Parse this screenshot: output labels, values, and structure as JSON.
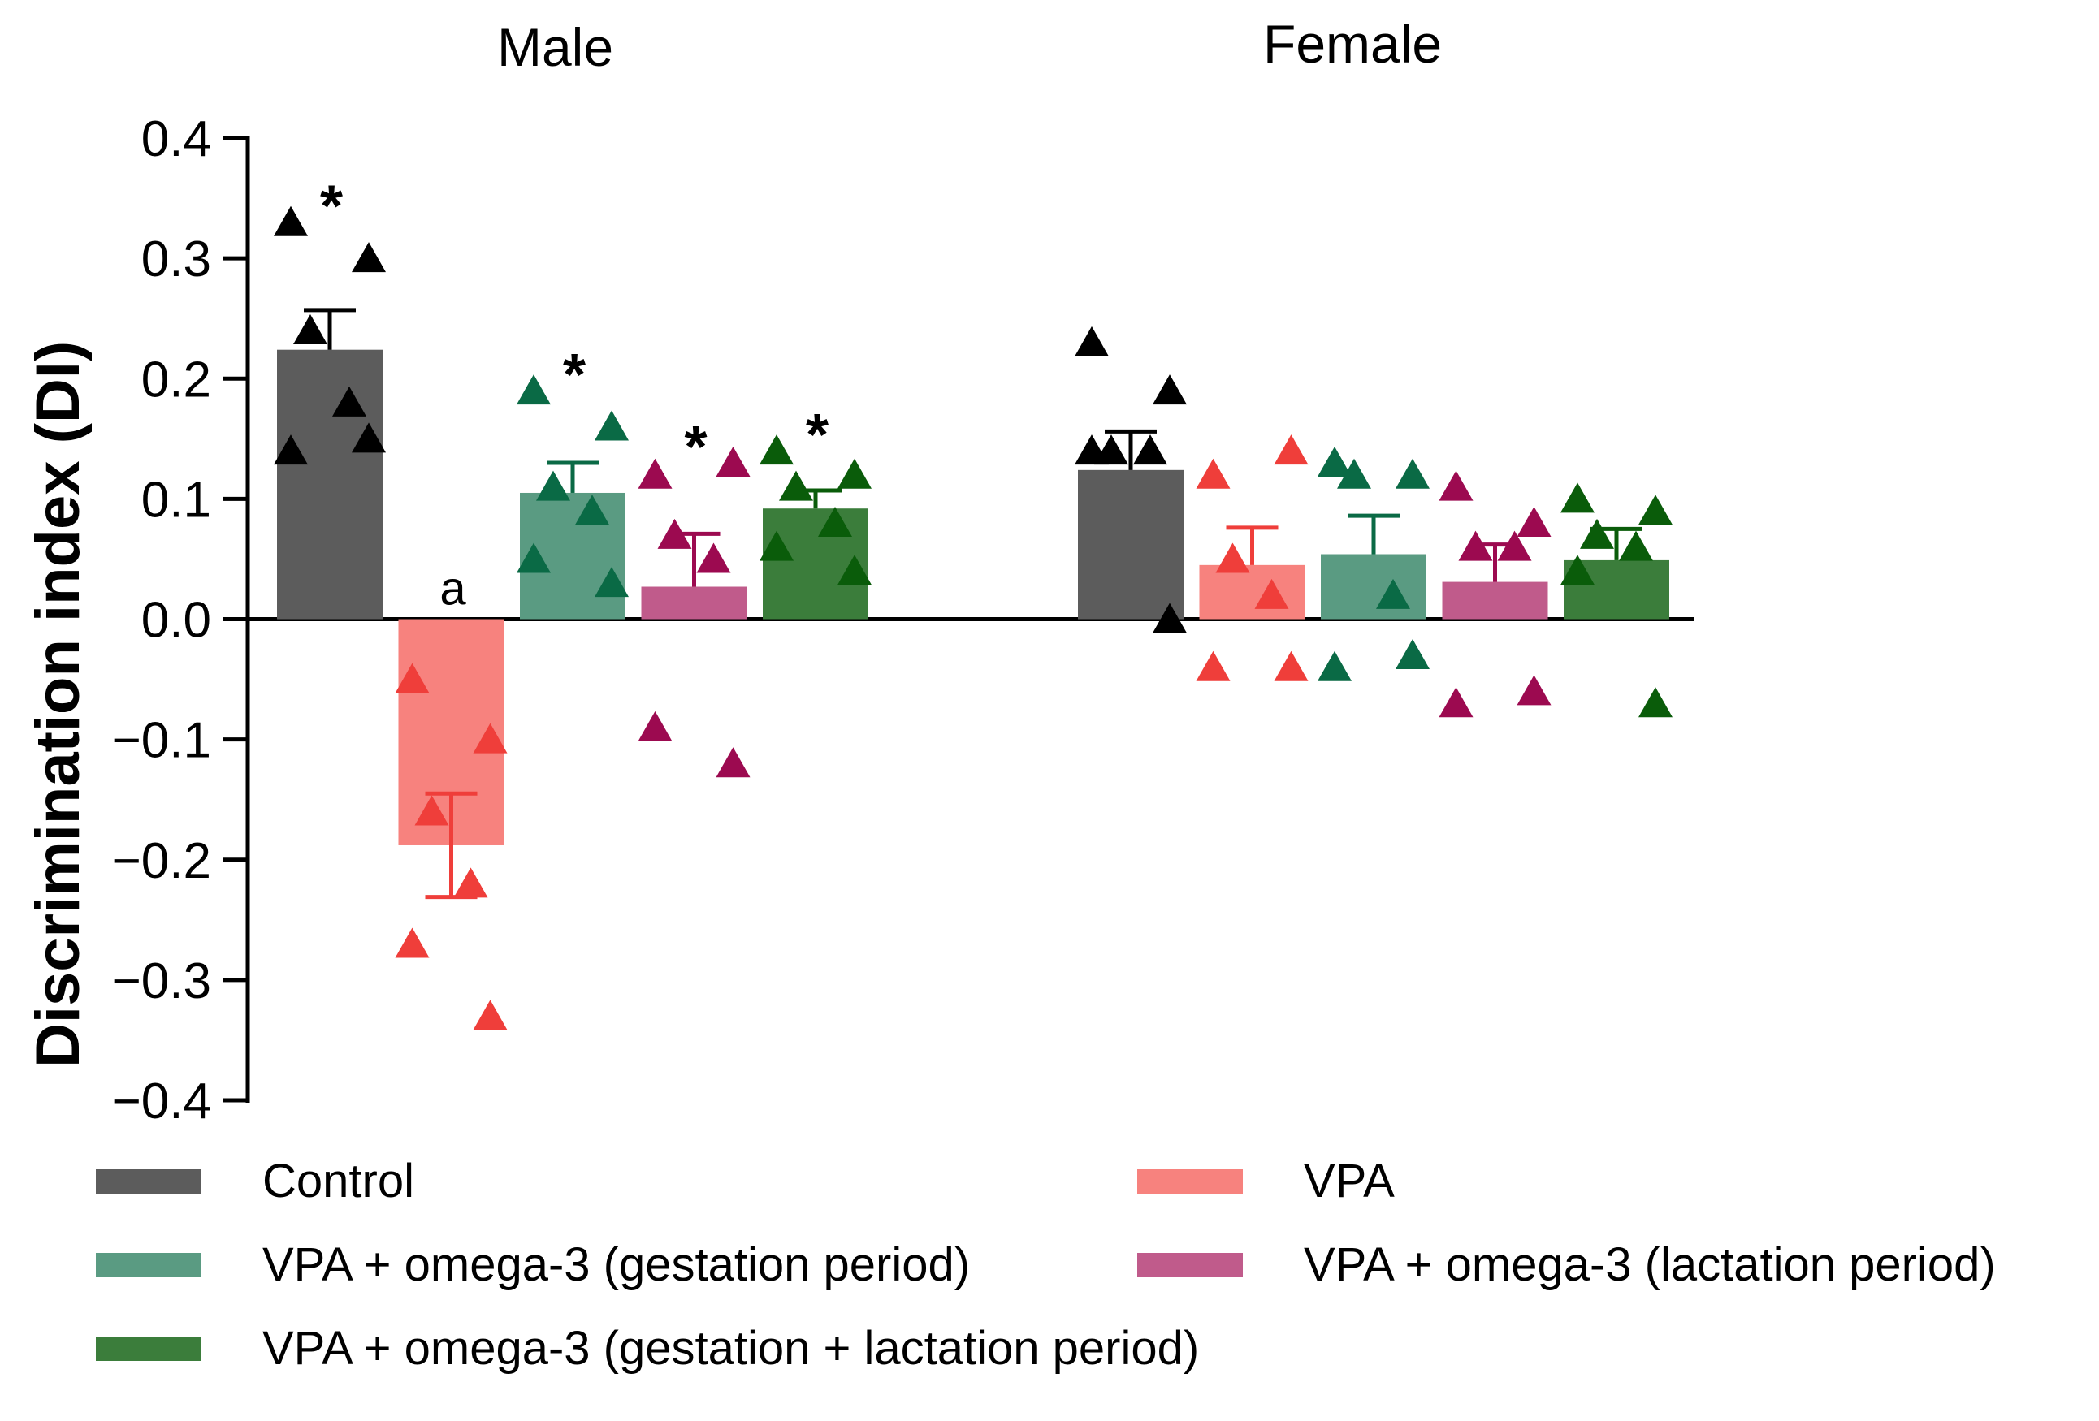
{
  "chart_data": {
    "type": "bar",
    "title": "",
    "ylabel": "Discrimination index (DI)",
    "xlabel": "",
    "ylim": [
      -0.4,
      0.4
    ],
    "yticks": [
      0.4,
      0.3,
      0.2,
      0.1,
      0.0,
      -0.1,
      -0.2,
      -0.3,
      -0.4
    ],
    "ytick_labels": [
      "0.4",
      "0.3",
      "0.2",
      "0.1",
      "0.0",
      "−0.1",
      "−0.2",
      "−0.3",
      "−0.4"
    ],
    "groups": [
      "Male",
      "Female"
    ],
    "series": [
      {
        "name": "Control",
        "color": "#5c5c5c",
        "marker_color": "#000000",
        "values": [
          0.224,
          0.124
        ],
        "sem": [
          0.033,
          0.032
        ],
        "points": [
          [
            0.33,
            0.3,
            0.24,
            0.18,
            0.14,
            0.15
          ],
          [
            0.23,
            0.19,
            0.14,
            0.14,
            0.14,
            0.0
          ]
        ],
        "annotations": [
          "*",
          ""
        ]
      },
      {
        "name": "VPA",
        "color": "#f7827e",
        "marker_color": "#ef3e3a",
        "values": [
          -0.188,
          0.045
        ],
        "sem": [
          0.043,
          0.031
        ],
        "points": [
          [
            -0.05,
            -0.1,
            -0.16,
            -0.22,
            -0.27,
            -0.33
          ],
          [
            0.12,
            0.14,
            0.05,
            0.02,
            -0.04,
            -0.04
          ]
        ],
        "annotations": [
          "a",
          ""
        ]
      },
      {
        "name": "VPA + omega-3 (gestation period)",
        "color": "#5a9b82",
        "marker_color": "#0a6a45",
        "values": [
          0.105,
          0.054
        ],
        "sem": [
          0.025,
          0.032
        ],
        "points": [
          [
            0.19,
            0.16,
            0.11,
            0.09,
            0.05,
            0.03
          ],
          [
            0.13,
            0.12,
            0.12,
            0.02,
            -0.04,
            -0.03
          ]
        ],
        "annotations": [
          "*",
          ""
        ]
      },
      {
        "name": "VPA + omega-3 (lactation period)",
        "color": "#c05b8b",
        "marker_color": "#9c0a50",
        "values": [
          0.027,
          0.031
        ],
        "sem": [
          0.044,
          0.031
        ],
        "points": [
          [
            0.12,
            0.13,
            0.07,
            0.05,
            -0.09,
            -0.12
          ],
          [
            0.11,
            0.08,
            0.06,
            0.06,
            -0.07,
            -0.06
          ]
        ],
        "annotations": [
          "*",
          ""
        ]
      },
      {
        "name": "VPA + omega-3 (gestation + lactation period)",
        "color": "#3b7d3b",
        "marker_color": "#0a5c0a",
        "values": [
          0.092,
          0.049
        ],
        "sem": [
          0.015,
          0.026
        ],
        "points": [
          [
            0.14,
            0.12,
            0.11,
            0.08,
            0.06,
            0.04
          ],
          [
            0.1,
            0.09,
            0.07,
            0.06,
            0.04,
            -0.07
          ]
        ],
        "annotations": [
          "*",
          ""
        ]
      }
    ],
    "legend": {
      "position": "bottom",
      "rows": [
        [
          "Control",
          "VPA"
        ],
        [
          "VPA + omega-3 (gestation period)",
          "VPA + omega-3 (lactation period)"
        ],
        [
          "VPA + omega-3 (gestation + lactation period)"
        ]
      ]
    }
  }
}
